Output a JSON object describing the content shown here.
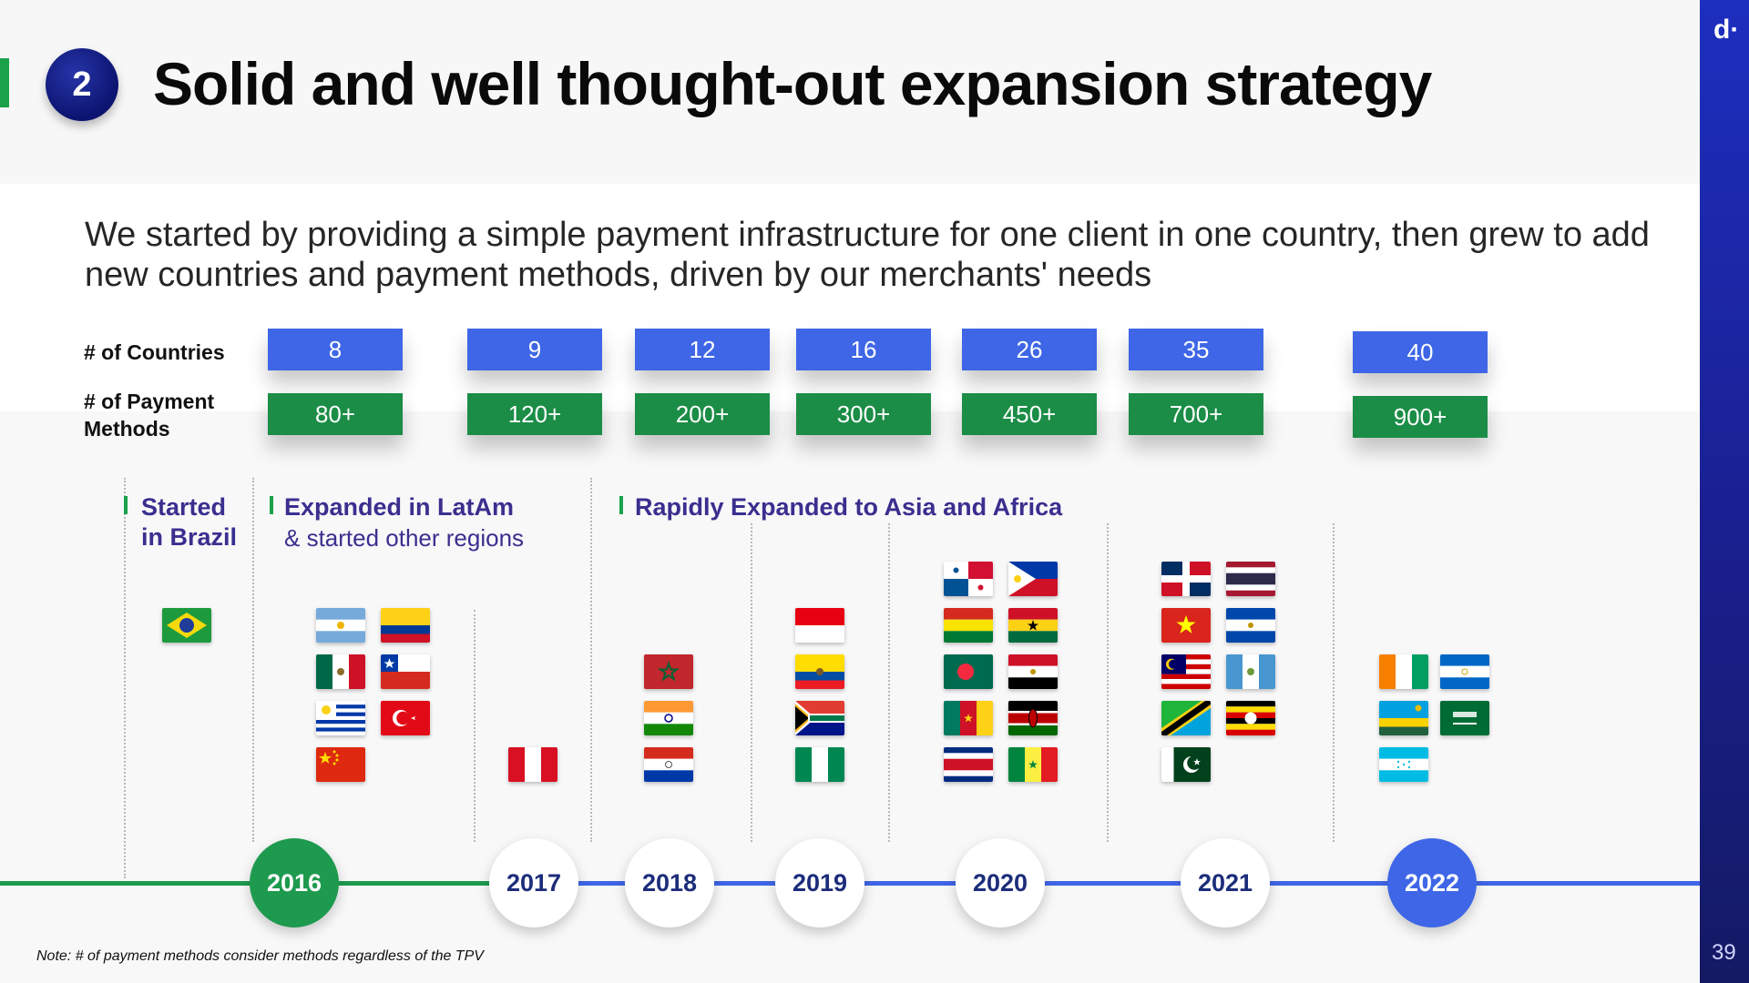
{
  "slide": {
    "number_badge": "2",
    "title": "Solid and well thought-out expansion strategy",
    "subtitle": "We started by providing a simple payment infrastructure for one client in one country, then grew to add new countries and payment methods, driven by our merchants' needs",
    "brand": "d·",
    "page_number": "39",
    "note": "Note: # of payment methods consider methods regardless of the TPV"
  },
  "rows": {
    "countries_label": "# of Countries",
    "methods_label_line1": "# of Payment",
    "methods_label_line2": "Methods"
  },
  "metrics": [
    {
      "countries": "8",
      "methods": "80+"
    },
    {
      "countries": "9",
      "methods": "120+"
    },
    {
      "countries": "12",
      "methods": "200+"
    },
    {
      "countries": "16",
      "methods": "300+"
    },
    {
      "countries": "26",
      "methods": "450+"
    },
    {
      "countries": "35",
      "methods": "700+"
    },
    {
      "countries": "40",
      "methods": "900+"
    }
  ],
  "phases": [
    {
      "title_line1": "Started",
      "title_line2": "in Brazil"
    },
    {
      "title": "Expanded in LatAm",
      "subtitle": "& started other regions"
    },
    {
      "title": "Rapidly Expanded to Asia and Africa"
    }
  ],
  "years": [
    "2016",
    "2017",
    "2018",
    "2019",
    "2020",
    "2021",
    "2022"
  ],
  "colors": {
    "countries_box": "#3e66e6",
    "methods_box": "#1b8d46",
    "timeline_green": "#1e9a4e",
    "timeline_blue": "#3e66e6",
    "brand_strip": "#1a1f8f",
    "phase_text": "#3a2f8f"
  }
}
